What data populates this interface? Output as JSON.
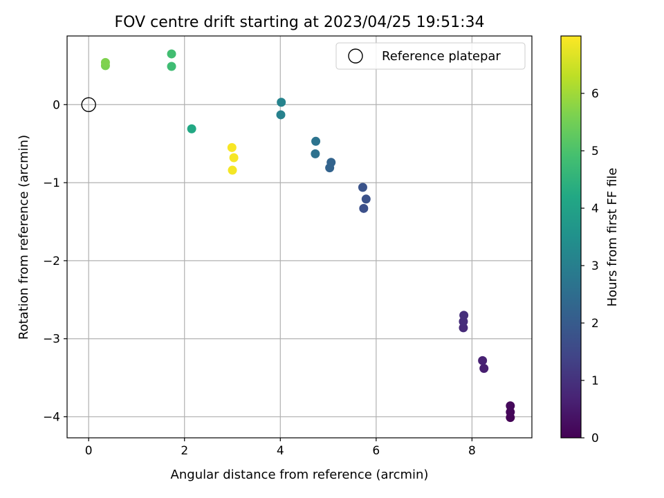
{
  "chart_data": {
    "type": "scatter",
    "title": "FOV centre drift starting at 2023/04/25 19:51:34",
    "xlabel": "Angular distance from reference (arcmin)",
    "ylabel": "Rotation from reference (arcmin)",
    "xlim": [
      -0.45,
      9.25
    ],
    "ylim": [
      -4.27,
      0.88
    ],
    "xticks": [
      0,
      2,
      4,
      6,
      8
    ],
    "yticks": [
      0,
      -1,
      -2,
      -3,
      -4
    ],
    "grid": true,
    "legend": {
      "position": "top-right",
      "entries": [
        "Reference platepar"
      ]
    },
    "reference_point": {
      "x": 0,
      "y": 0
    },
    "colorbar": {
      "label": "Hours from first FF file",
      "range": [
        0,
        7.0
      ],
      "ticks": [
        0,
        1,
        2,
        3,
        4,
        5,
        6
      ],
      "colormap": "viridis"
    },
    "points": [
      {
        "x": 8.8,
        "y": -4.01,
        "hours": 0.05
      },
      {
        "x": 8.8,
        "y": -3.94,
        "hours": 0.1
      },
      {
        "x": 8.8,
        "y": -3.86,
        "hours": 0.15
      },
      {
        "x": 8.25,
        "y": -3.38,
        "hours": 0.6
      },
      {
        "x": 8.22,
        "y": -3.28,
        "hours": 0.65
      },
      {
        "x": 7.82,
        "y": -2.86,
        "hours": 0.85
      },
      {
        "x": 7.82,
        "y": -2.78,
        "hours": 0.9
      },
      {
        "x": 7.83,
        "y": -2.7,
        "hours": 0.95
      },
      {
        "x": 5.74,
        "y": -1.33,
        "hours": 1.7
      },
      {
        "x": 5.79,
        "y": -1.21,
        "hours": 1.75
      },
      {
        "x": 5.72,
        "y": -1.06,
        "hours": 1.8
      },
      {
        "x": 5.03,
        "y": -0.81,
        "hours": 2.2
      },
      {
        "x": 5.06,
        "y": -0.74,
        "hours": 2.25
      },
      {
        "x": 4.73,
        "y": -0.63,
        "hours": 2.6
      },
      {
        "x": 4.74,
        "y": -0.47,
        "hours": 2.65
      },
      {
        "x": 4.01,
        "y": -0.13,
        "hours": 3.05
      },
      {
        "x": 4.02,
        "y": 0.03,
        "hours": 3.1
      },
      {
        "x": 2.15,
        "y": -0.31,
        "hours": 4.2
      },
      {
        "x": 1.73,
        "y": 0.49,
        "hours": 4.8
      },
      {
        "x": 1.73,
        "y": 0.65,
        "hours": 4.85
      },
      {
        "x": 0.35,
        "y": 0.5,
        "hours": 5.6
      },
      {
        "x": 0.35,
        "y": 0.54,
        "hours": 5.65
      },
      {
        "x": 3.0,
        "y": -0.84,
        "hours": 6.9
      },
      {
        "x": 3.03,
        "y": -0.68,
        "hours": 6.92
      },
      {
        "x": 2.99,
        "y": -0.55,
        "hours": 6.95
      }
    ]
  }
}
